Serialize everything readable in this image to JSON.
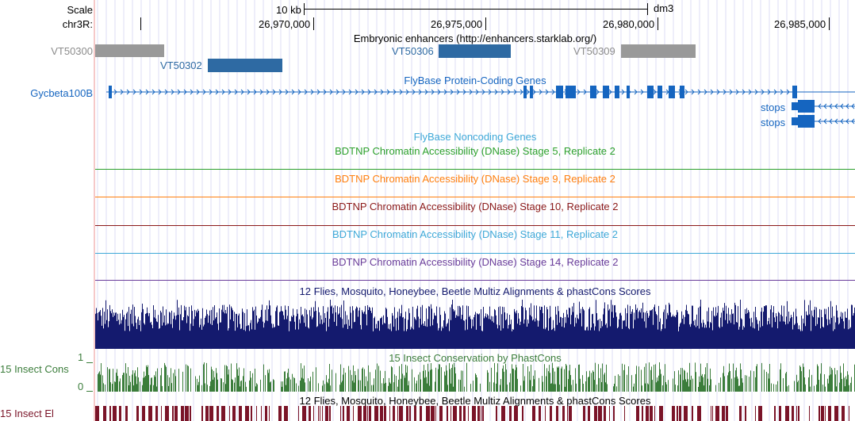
{
  "colors": {
    "gray": "#8c8c8c",
    "blue": "#2e6aa3",
    "gene_blue": "#1565c0",
    "green": "#2ca02c",
    "orange": "#ff7f0e",
    "darkred": "#8b1a1a",
    "lightblue": "#3fa9d8",
    "purple": "#6a3d9a",
    "navy": "#141a6e",
    "cons_green": "#3b7d3b",
    "el_red": "#7a1428"
  },
  "ruler": {
    "scale_label": "Scale",
    "scale_value": "10 kb",
    "assembly": "dm3",
    "chrom_label": "chr3R:",
    "positions": [
      "26,970,000",
      "26,975,000",
      "26,980,000",
      "26,985,000"
    ]
  },
  "enhancers": {
    "title": "Embryonic enhancers (http://enhancers.starklab.org/)",
    "items": [
      {
        "label": "VT50300",
        "color": "gray"
      },
      {
        "label": "VT50302",
        "color": "blue"
      },
      {
        "label": "VT50306",
        "color": "blue"
      },
      {
        "label": "VT50309",
        "color": "gray"
      }
    ]
  },
  "genes": {
    "title": "FlyBase Protein-Coding Genes",
    "gene_name": "Gycbeta100B",
    "stops": [
      "stops",
      "stops"
    ]
  },
  "noncoding": {
    "title": "FlyBase Noncoding Genes"
  },
  "dnase": [
    {
      "title": "BDTNP Chromatin Accessibility (DNase) Stage 5, Replicate 2",
      "color": "green"
    },
    {
      "title": "BDTNP Chromatin Accessibility (DNase) Stage 9, Replicate 2",
      "color": "orange"
    },
    {
      "title": "BDTNP Chromatin Accessibility (DNase) Stage 10, Replicate 2",
      "color": "darkred"
    },
    {
      "title": "BDTNP Chromatin Accessibility (DNase) Stage 11, Replicate 2",
      "color": "lightblue"
    },
    {
      "title": "BDTNP Chromatin Accessibility (DNase) Stage 14, Replicate 2",
      "color": "purple"
    }
  ],
  "multiz": {
    "title": "12 Flies, Mosquito, Honeybee, Beetle Multiz Alignments & phastCons Scores"
  },
  "phastcons": {
    "title": "15 Insect Conservation by PhastCons",
    "side_label": "15 Insect Cons",
    "axis_max": "1",
    "axis_min": "0"
  },
  "elements": {
    "title": "12 Flies, Mosquito, Honeybee, Beetle Multiz Alignments & phastCons Scores",
    "side_label": "15 Insect El"
  }
}
